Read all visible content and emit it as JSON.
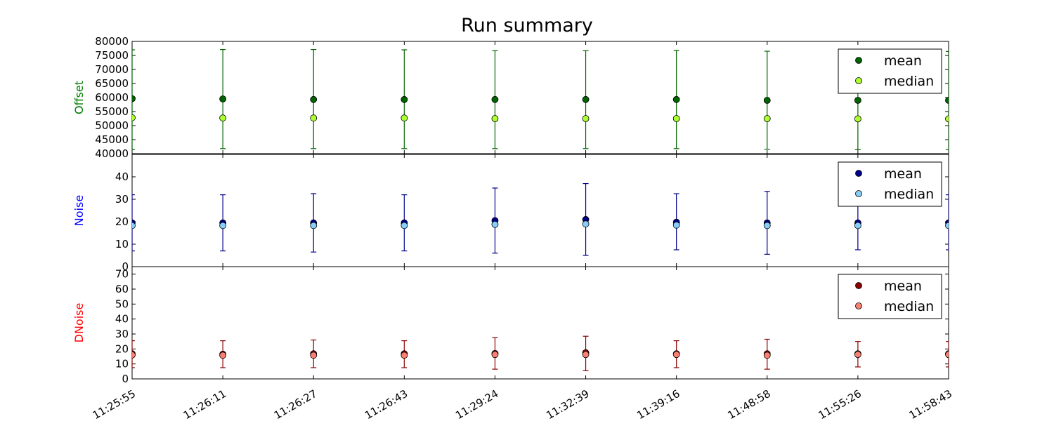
{
  "figure": {
    "title": "Run summary"
  },
  "chart_data": [
    {
      "type": "scatter",
      "panel": "offset",
      "ylabel": "Offset",
      "ylabel_color": "#008000",
      "ylim": [
        40000,
        80000
      ],
      "yticks": [
        40000,
        45000,
        50000,
        55000,
        60000,
        65000,
        70000,
        75000,
        80000
      ],
      "ytick_labels": [
        "40000",
        "45000",
        "50000",
        "55000",
        "60000",
        "65000",
        "70000",
        "75000",
        "80000"
      ],
      "errorbar_color": "#006400",
      "categories": [
        "11:25:55",
        "11:26:11",
        "11:26:27",
        "11:26:43",
        "11:29:24",
        "11:32:39",
        "11:39:16",
        "11:48:58",
        "11:55:26",
        "11:58:43"
      ],
      "error_low": [
        41500,
        41800,
        41800,
        41800,
        41800,
        41800,
        41800,
        41600,
        41400,
        41400
      ],
      "error_high": [
        77000,
        77100,
        77100,
        77000,
        76700,
        76700,
        76800,
        76500,
        76400,
        76400
      ],
      "series": [
        {
          "name": "mean",
          "color": "#006400",
          "values": [
            59600,
            59500,
            59300,
            59300,
            59300,
            59300,
            59300,
            59000,
            59000,
            59000
          ]
        },
        {
          "name": "median",
          "color": "#adff2f",
          "values": [
            52800,
            52700,
            52700,
            52700,
            52500,
            52500,
            52500,
            52500,
            52400,
            52400
          ]
        }
      ],
      "legend": "top-right"
    },
    {
      "type": "scatter",
      "panel": "noise",
      "ylabel": "Noise",
      "ylabel_color": "#0000ff",
      "ylim": [
        0,
        50
      ],
      "yticks": [
        0,
        10,
        20,
        30,
        40
      ],
      "ytick_labels": [
        "0",
        "10",
        "20",
        "30",
        "40"
      ],
      "errorbar_color": "#00008b",
      "categories": [
        "11:25:55",
        "11:26:11",
        "11:26:27",
        "11:26:43",
        "11:29:24",
        "11:32:39",
        "11:39:16",
        "11:48:58",
        "11:55:26",
        "11:58:43"
      ],
      "error_low": [
        7.0,
        7.0,
        6.5,
        7.0,
        6.0,
        5.0,
        7.5,
        5.5,
        7.5,
        7.5
      ],
      "error_high": [
        32.0,
        32.0,
        32.5,
        32.0,
        35.0,
        37.0,
        32.5,
        33.5,
        32.0,
        32.0
      ],
      "series": [
        {
          "name": "mean",
          "color": "#00008b",
          "values": [
            19.5,
            19.5,
            19.5,
            19.5,
            20.5,
            21.0,
            19.8,
            19.5,
            19.5,
            19.5
          ]
        },
        {
          "name": "median",
          "color": "#87cefa",
          "values": [
            18.3,
            18.3,
            18.3,
            18.3,
            18.8,
            19.0,
            18.5,
            18.3,
            18.3,
            18.3
          ]
        }
      ],
      "legend": "top-right"
    },
    {
      "type": "scatter",
      "panel": "dnoise",
      "ylabel": "DNoise",
      "ylabel_color": "#ff0000",
      "ylim": [
        0,
        75
      ],
      "yticks": [
        0,
        10,
        20,
        30,
        40,
        50,
        60,
        70
      ],
      "ytick_labels": [
        "0",
        "10",
        "20",
        "30",
        "40",
        "50",
        "60",
        "70"
      ],
      "errorbar_color": "#8b0000",
      "categories": [
        "11:25:55",
        "11:26:11",
        "11:26:27",
        "11:26:43",
        "11:29:24",
        "11:32:39",
        "11:39:16",
        "11:48:58",
        "11:55:26",
        "11:58:43"
      ],
      "error_low": [
        7.5,
        7.5,
        7.5,
        7.5,
        6.5,
        5.5,
        7.5,
        6.5,
        8.0,
        8.0
      ],
      "error_high": [
        25.5,
        25.5,
        26.0,
        25.5,
        27.5,
        28.5,
        25.5,
        26.5,
        25.0,
        25.0
      ],
      "series": [
        {
          "name": "mean",
          "color": "#8b0000",
          "values": [
            16.8,
            16.5,
            16.8,
            16.8,
            17.0,
            17.5,
            16.8,
            16.8,
            16.8,
            16.8
          ]
        },
        {
          "name": "median",
          "color": "#fa8072",
          "values": [
            16.0,
            15.8,
            15.8,
            15.8,
            16.3,
            16.3,
            16.3,
            15.8,
            16.3,
            16.3
          ]
        }
      ],
      "legend": "top-right"
    }
  ]
}
